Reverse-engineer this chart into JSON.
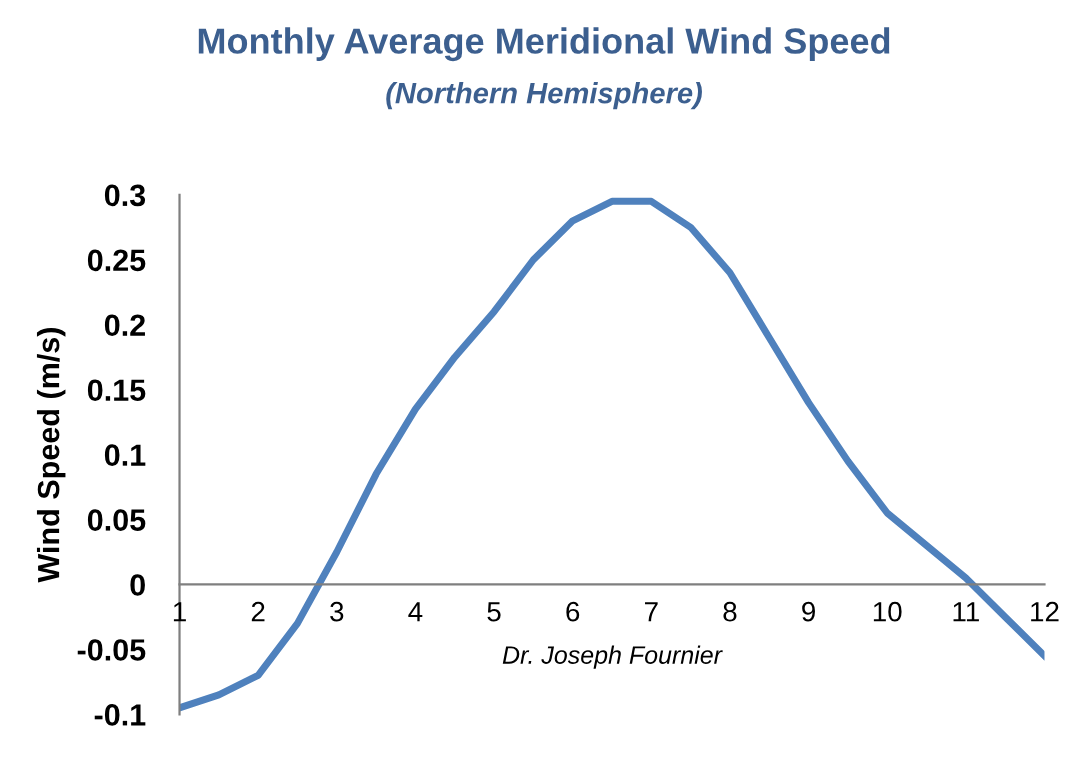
{
  "chart_data": {
    "type": "line",
    "title": "Monthly Average Meridional Wind Speed",
    "subtitle": "(Northern Hemisphere)",
    "ylabel": "Wind Speed (m/s)",
    "x": [
      1,
      1.5,
      2,
      2.5,
      3,
      3.5,
      4,
      4.5,
      5,
      5.5,
      6,
      6.5,
      7,
      7.5,
      8,
      8.5,
      9,
      9.5,
      10,
      10.5,
      11,
      11.5,
      12
    ],
    "series": [
      {
        "color": "#4f81bd",
        "values": [
          -0.095,
          -0.085,
          -0.07,
          -0.03,
          0.025,
          0.085,
          0.135,
          0.175,
          0.21,
          0.25,
          0.28,
          0.295,
          0.295,
          0.275,
          0.24,
          0.19,
          0.14,
          0.095,
          0.055,
          0.03,
          0.005,
          -0.025,
          -0.055
        ]
      }
    ],
    "xlim": [
      1,
      12
    ],
    "xticks": [
      1,
      2,
      3,
      4,
      5,
      6,
      7,
      8,
      9,
      10,
      11,
      12
    ],
    "ylim": [
      -0.1,
      0.3
    ],
    "yticks": [
      -0.1,
      -0.05,
      0,
      0.05,
      0.1,
      0.15,
      0.2,
      0.25,
      0.3
    ],
    "grid": false,
    "legend": false,
    "marker": "none",
    "line_style": "solid",
    "annotations": [
      "Dr. Joseph Fournier"
    ]
  }
}
